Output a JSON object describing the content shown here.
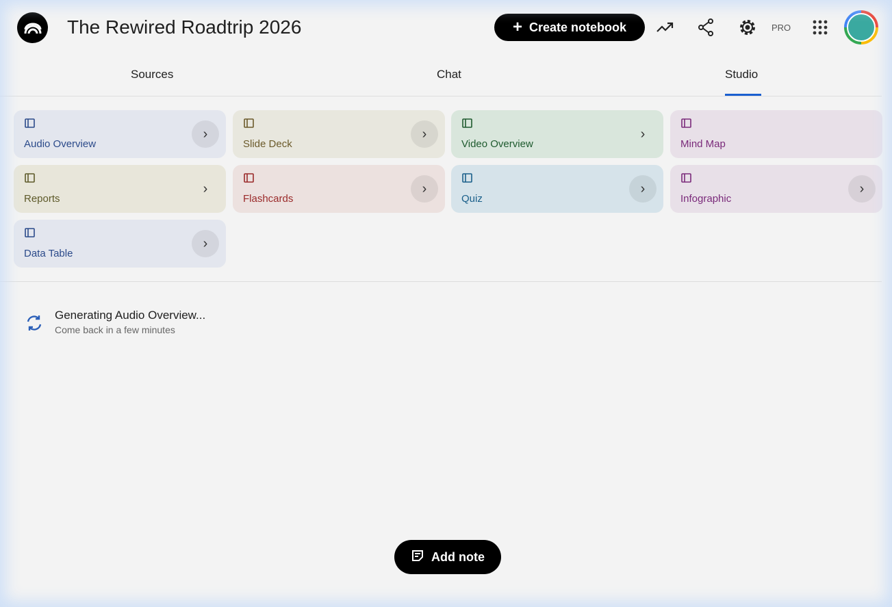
{
  "header": {
    "title": "The Rewired Roadtrip 2026",
    "create_label": "Create notebook",
    "pro_label": "PRO"
  },
  "tabs": [
    {
      "label": "Sources"
    },
    {
      "label": "Chat"
    },
    {
      "label": "Studio",
      "active": true
    }
  ],
  "studio": {
    "cards": [
      {
        "label": "Audio Overview",
        "icon": "audio-waveform-icon",
        "bg": "#e3e6ee",
        "fg": "#2b4a8a"
      },
      {
        "label": "Slide Deck",
        "icon": "slides-icon",
        "bg": "#e8e7de",
        "fg": "#6b5a2a"
      },
      {
        "label": "Video Overview",
        "icon": "video-icon",
        "bg": "#d9e6dc",
        "fg": "#1e5a2e"
      },
      {
        "label": "Mind Map",
        "icon": "mind-map-icon",
        "bg": "#e8e0e8",
        "fg": "#7a2a7a"
      },
      {
        "label": "Reports",
        "icon": "reports-icon",
        "bg": "#e8e6da",
        "fg": "#5e5a2a"
      },
      {
        "label": "Flashcards",
        "icon": "flashcards-icon",
        "bg": "#ece1df",
        "fg": "#9a2a2a"
      },
      {
        "label": "Quiz",
        "icon": "quiz-icon",
        "bg": "#d6e3ea",
        "fg": "#1a5f8a"
      },
      {
        "label": "Infographic",
        "icon": "infographic-icon",
        "bg": "#e8e0e8",
        "fg": "#7a2a7a"
      },
      {
        "label": "Data Table",
        "icon": "data-table-icon",
        "bg": "#e3e6ee",
        "fg": "#2b4a8a"
      }
    ]
  },
  "generating": {
    "title": "Generating Audio Overview...",
    "subtitle": "Come back in a few minutes"
  },
  "add_note_label": "Add note"
}
